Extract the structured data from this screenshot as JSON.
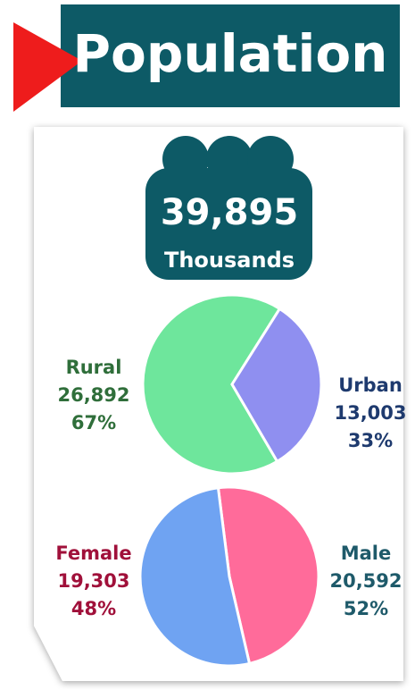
{
  "header": {
    "title": "Population"
  },
  "total": {
    "value": "39,895",
    "unit": "Thousands"
  },
  "chart_data": [
    {
      "type": "pie",
      "categories": [
        "Rural",
        "Urban"
      ],
      "values": [
        26892,
        13003
      ],
      "value_labels": [
        "26,892",
        "13,003"
      ],
      "percents": [
        67,
        33
      ],
      "percent_labels": [
        "67%",
        "33%"
      ],
      "colors": [
        "#6ee69c",
        "#8f8ff0"
      ],
      "label_colors": [
        "#2f6e3a",
        "#1e3a6e"
      ]
    },
    {
      "type": "pie",
      "categories": [
        "Female",
        "Male"
      ],
      "values": [
        19303,
        20592
      ],
      "value_labels": [
        "19,303",
        "20,592"
      ],
      "percents": [
        48,
        52
      ],
      "percent_labels": [
        "48%",
        "52%"
      ],
      "colors": [
        "#ff6b9a",
        "#6fa3f2"
      ],
      "label_colors": [
        "#a0103a",
        "#1e5a6a"
      ]
    }
  ]
}
